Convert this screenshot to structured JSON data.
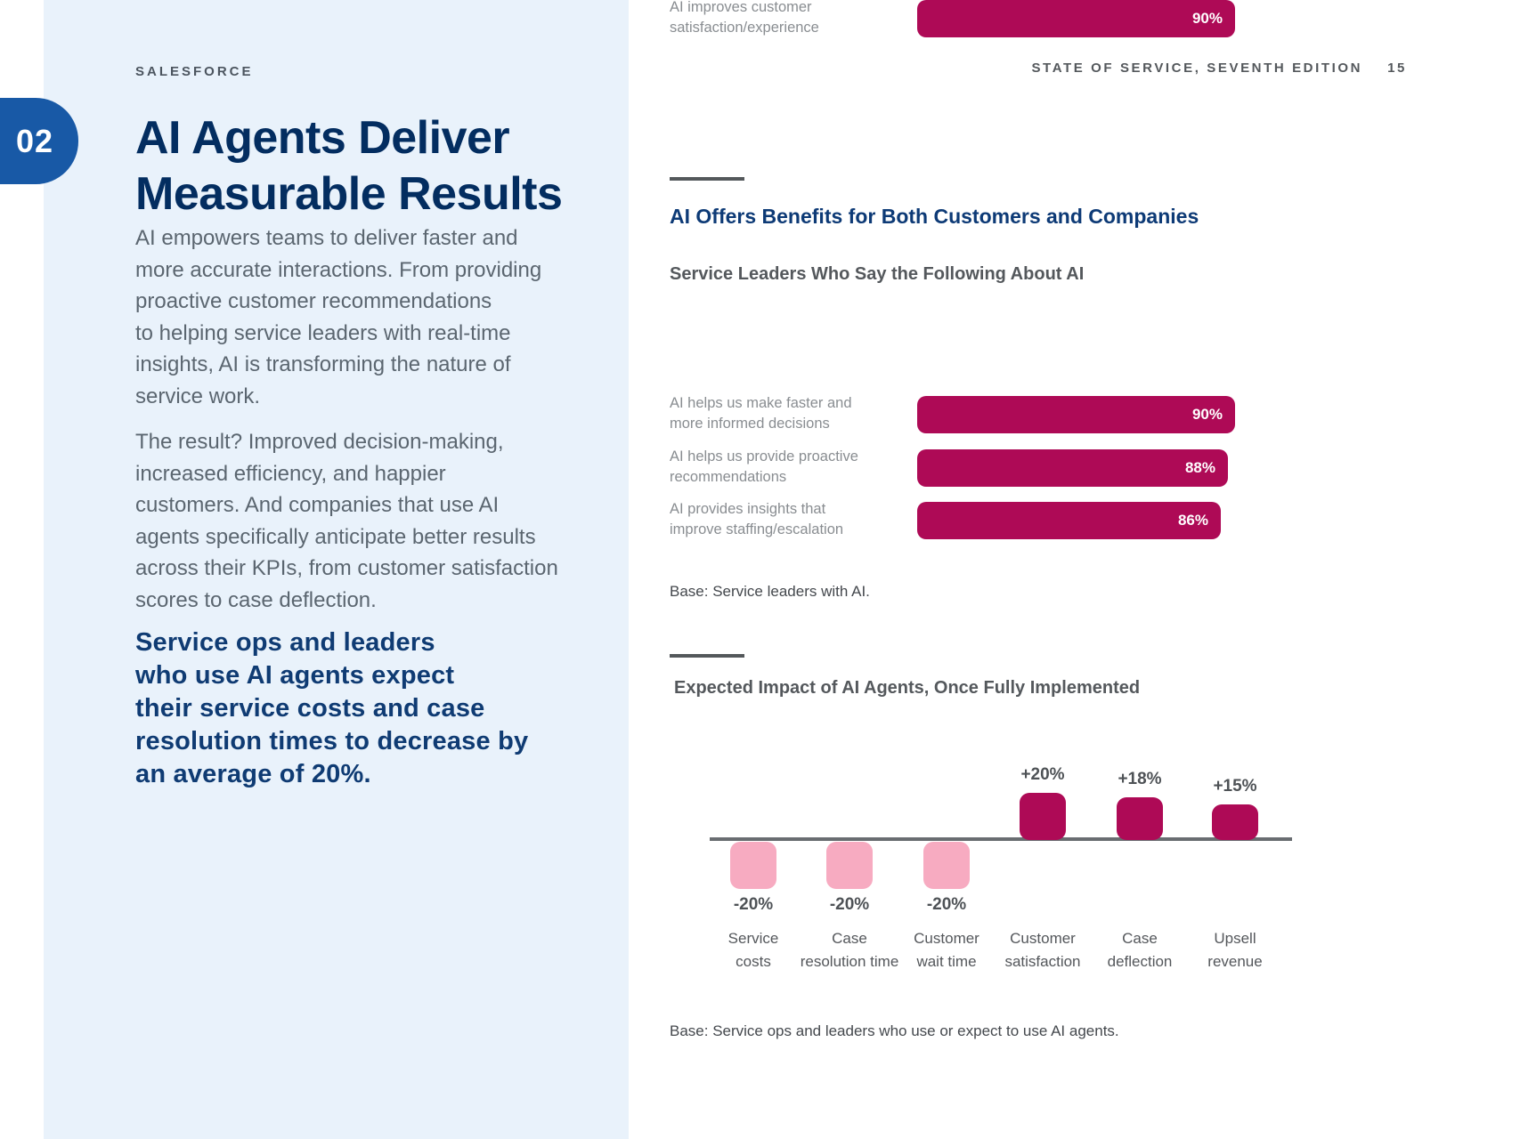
{
  "page": {
    "brand": "SALESFORCE",
    "chapter_number": "02",
    "edition_header": "STATE OF SERVICE, SEVENTH EDITION",
    "page_number": "15"
  },
  "sidebar": {
    "title_lines": [
      "AI Agents Deliver",
      "Measurable Results"
    ],
    "paragraph1_lines": [
      "AI empowers teams to deliver faster and",
      "more accurate interactions. From providing",
      "proactive customer recommendations",
      "to helping service leaders with real-time",
      "insights, AI is transforming the nature of",
      "service work."
    ],
    "paragraph2_lines": [
      "The result? Improved decision-making,",
      "increased efficiency, and happier",
      "customers. And companies that use AI",
      "agents specifically anticipate better results",
      "across their KPIs, from customer satisfaction",
      "scores to case deflection."
    ],
    "callout_lines": [
      "Service ops and leaders",
      "who use AI agents expect",
      "their service costs and case",
      "resolution times to decrease by",
      "an average of 20%."
    ]
  },
  "main": {
    "section_title": "AI Offers Benefits for Both Customers and Companies"
  },
  "chart_data": [
    {
      "type": "bar",
      "orientation": "horizontal",
      "title": "Service Leaders Who Say the Following About AI",
      "categories": [
        "AI improves customer satisfaction/experience",
        "AI helps us make faster and more informed decisions",
        "AI helps us provide proactive recommendations",
        "AI provides insights that improve staffing/escalation"
      ],
      "values": [
        90,
        90,
        88,
        86
      ],
      "unit": "%",
      "xlim": [
        0,
        100
      ],
      "bar_color": "#AE0A56",
      "rows": [
        {
          "line1": "AI improves customer",
          "line2": "satisfaction/experience",
          "value": 90,
          "label": "90%"
        },
        {
          "line1": "AI helps us make faster and",
          "line2": "more informed decisions",
          "value": 90,
          "label": "90%"
        },
        {
          "line1": "AI helps us provide proactive",
          "line2": "recommendations",
          "value": 88,
          "label": "88%"
        },
        {
          "line1": "AI provides insights that",
          "line2": "improve staffing/escalation",
          "value": 86,
          "label": "86%"
        }
      ],
      "base_note": "Base: Service leaders with AI."
    },
    {
      "type": "bar",
      "orientation": "vertical",
      "title": "Expected Impact of AI Agents, Once Fully Implemented",
      "categories": [
        "Service costs",
        "Case resolution time",
        "Customer wait time",
        "Customer satisfaction",
        "Case deflection",
        "Upsell revenue"
      ],
      "values": [
        -20,
        -20,
        -20,
        20,
        18,
        15
      ],
      "unit": "%",
      "positive_color": "#AE0A56",
      "negative_color": "#F7ABC1",
      "columns": [
        {
          "line1": "Service",
          "line2": "costs",
          "value": -20,
          "label": "-20%"
        },
        {
          "line1": "Case",
          "line2": "resolution time",
          "value": -20,
          "label": "-20%"
        },
        {
          "line1": "Customer",
          "line2": "wait time",
          "value": -20,
          "label": "-20%"
        },
        {
          "line1": "Customer",
          "line2": "satisfaction",
          "value": 20,
          "label": "+20%"
        },
        {
          "line1": "Case",
          "line2": "deflection",
          "value": 18,
          "label": "+18%"
        },
        {
          "line1": "Upsell",
          "line2": "revenue",
          "value": 15,
          "label": "+15%"
        }
      ],
      "base_note": "Base: Service ops and leaders who use or expect to use AI agents."
    }
  ],
  "colors": {
    "panel_blue": "#E9F2FB",
    "brand_blue": "#1859A6",
    "heading_navy": "#032D60",
    "callout_navy": "#0F3B73",
    "section_title_blue": "#0D3A76",
    "bar_magenta": "#AE0A56",
    "bar_pink": "#F7ABC1",
    "body_gray": "#5B6670",
    "axis_gray": "#696D71"
  }
}
